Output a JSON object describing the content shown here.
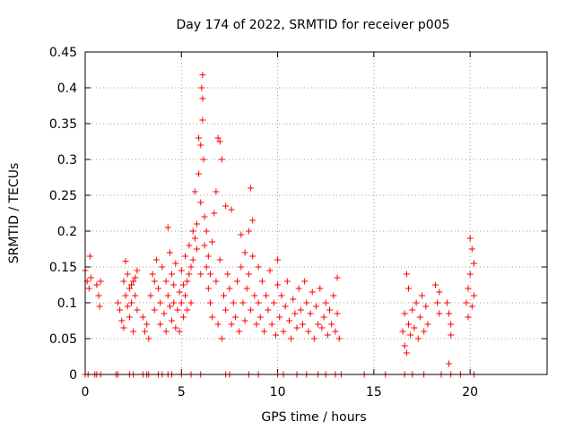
{
  "chart_data": {
    "type": "scatter",
    "title": "Day 174 of 2022, SRMTID for receiver p005",
    "xlabel": "GPS time / hours",
    "ylabel": "SRMTID / TECUs",
    "xlim": [
      0,
      24
    ],
    "ylim": [
      0,
      0.45
    ],
    "x_ticks": [
      0,
      5,
      10,
      15,
      20
    ],
    "y_ticks": [
      0,
      0.05,
      0.1,
      0.15,
      0.2,
      0.25,
      0.3,
      0.35,
      0.4,
      0.45
    ],
    "x_tick_labels": [
      "0",
      "5",
      "10",
      "15",
      "20"
    ],
    "y_tick_labels": [
      "0",
      "0.05",
      "0.1",
      "0.15",
      "0.2",
      "0.25",
      "0.3",
      "0.35",
      "0.4",
      "0.45"
    ],
    "grid": true,
    "marker": "plus",
    "color": "#ff0000",
    "series": [
      {
        "name": "SRMTID",
        "points": [
          [
            0.0,
            0.145
          ],
          [
            0.1,
            0.13
          ],
          [
            0.2,
            0.12
          ],
          [
            0.25,
            0.165
          ],
          [
            0.3,
            0.135
          ],
          [
            0.6,
            0.125
          ],
          [
            0.7,
            0.11
          ],
          [
            0.75,
            0.095
          ],
          [
            0.8,
            0.13
          ],
          [
            1.7,
            0.1
          ],
          [
            1.8,
            0.09
          ],
          [
            1.9,
            0.075
          ],
          [
            2.0,
            0.13
          ],
          [
            2.0,
            0.065
          ],
          [
            2.1,
            0.11
          ],
          [
            2.1,
            0.158
          ],
          [
            2.2,
            0.14
          ],
          [
            2.2,
            0.095
          ],
          [
            2.3,
            0.12
          ],
          [
            2.3,
            0.08
          ],
          [
            2.4,
            0.125
          ],
          [
            2.4,
            0.1
          ],
          [
            2.5,
            0.13
          ],
          [
            2.5,
            0.06
          ],
          [
            2.6,
            0.135
          ],
          [
            2.6,
            0.11
          ],
          [
            2.7,
            0.145
          ],
          [
            2.7,
            0.09
          ],
          [
            3.0,
            0.08
          ],
          [
            3.1,
            0.06
          ],
          [
            3.2,
            0.07
          ],
          [
            3.3,
            0.05
          ],
          [
            3.4,
            0.11
          ],
          [
            3.5,
            0.14
          ],
          [
            3.6,
            0.13
          ],
          [
            3.6,
            0.09
          ],
          [
            3.7,
            0.16
          ],
          [
            3.8,
            0.12
          ],
          [
            3.9,
            0.1
          ],
          [
            3.9,
            0.07
          ],
          [
            4.0,
            0.15
          ],
          [
            4.1,
            0.085
          ],
          [
            4.2,
            0.13
          ],
          [
            4.2,
            0.06
          ],
          [
            4.3,
            0.11
          ],
          [
            4.3,
            0.205
          ],
          [
            4.4,
            0.17
          ],
          [
            4.4,
            0.095
          ],
          [
            4.5,
            0.14
          ],
          [
            4.5,
            0.075
          ],
          [
            4.6,
            0.1
          ],
          [
            4.6,
            0.125
          ],
          [
            4.7,
            0.155
          ],
          [
            4.7,
            0.065
          ],
          [
            4.8,
            0.09
          ],
          [
            4.9,
            0.115
          ],
          [
            4.9,
            0.06
          ],
          [
            5.0,
            0.1
          ],
          [
            5.0,
            0.145
          ],
          [
            5.1,
            0.08
          ],
          [
            5.1,
            0.125
          ],
          [
            5.2,
            0.11
          ],
          [
            5.2,
            0.165
          ],
          [
            5.3,
            0.09
          ],
          [
            5.3,
            0.13
          ],
          [
            5.4,
            0.14
          ],
          [
            5.4,
            0.18
          ],
          [
            5.5,
            0.15
          ],
          [
            5.5,
            0.1
          ],
          [
            5.6,
            0.2
          ],
          [
            5.6,
            0.16
          ],
          [
            5.7,
            0.19
          ],
          [
            5.7,
            0.255
          ],
          [
            5.8,
            0.21
          ],
          [
            5.8,
            0.175
          ],
          [
            5.9,
            0.28
          ],
          [
            5.9,
            0.33
          ],
          [
            6.0,
            0.32
          ],
          [
            6.0,
            0.24
          ],
          [
            6.0,
            0.14
          ],
          [
            6.05,
            0.4
          ],
          [
            6.1,
            0.418
          ],
          [
            6.1,
            0.385
          ],
          [
            6.1,
            0.355
          ],
          [
            6.15,
            0.3
          ],
          [
            6.2,
            0.22
          ],
          [
            6.2,
            0.18
          ],
          [
            6.3,
            0.15
          ],
          [
            6.3,
            0.2
          ],
          [
            6.4,
            0.12
          ],
          [
            6.4,
            0.165
          ],
          [
            6.5,
            0.1
          ],
          [
            6.5,
            0.14
          ],
          [
            6.6,
            0.185
          ],
          [
            6.6,
            0.08
          ],
          [
            6.7,
            0.225
          ],
          [
            6.8,
            0.13
          ],
          [
            6.8,
            0.255
          ],
          [
            6.9,
            0.33
          ],
          [
            6.9,
            0.07
          ],
          [
            7.0,
            0.325
          ],
          [
            7.0,
            0.16
          ],
          [
            7.1,
            0.3
          ],
          [
            7.1,
            0.05
          ],
          [
            7.2,
            0.11
          ],
          [
            7.3,
            0.09
          ],
          [
            7.3,
            0.235
          ],
          [
            7.4,
            0.14
          ],
          [
            7.5,
            0.12
          ],
          [
            7.6,
            0.07
          ],
          [
            7.6,
            0.23
          ],
          [
            7.7,
            0.1
          ],
          [
            7.8,
            0.08
          ],
          [
            7.9,
            0.13
          ],
          [
            8.0,
            0.06
          ],
          [
            8.1,
            0.15
          ],
          [
            8.1,
            0.195
          ],
          [
            8.2,
            0.1
          ],
          [
            8.3,
            0.17
          ],
          [
            8.3,
            0.075
          ],
          [
            8.4,
            0.12
          ],
          [
            8.5,
            0.14
          ],
          [
            8.5,
            0.2
          ],
          [
            8.6,
            0.09
          ],
          [
            8.6,
            0.26
          ],
          [
            8.7,
            0.165
          ],
          [
            8.7,
            0.215
          ],
          [
            8.8,
            0.11
          ],
          [
            8.9,
            0.07
          ],
          [
            9.0,
            0.15
          ],
          [
            9.0,
            0.1
          ],
          [
            9.1,
            0.08
          ],
          [
            9.2,
            0.13
          ],
          [
            9.3,
            0.06
          ],
          [
            9.4,
            0.11
          ],
          [
            9.5,
            0.09
          ],
          [
            9.6,
            0.145
          ],
          [
            9.7,
            0.07
          ],
          [
            9.8,
            0.1
          ],
          [
            9.9,
            0.055
          ],
          [
            10.0,
            0.125
          ],
          [
            10.0,
            0.16
          ],
          [
            10.1,
            0.08
          ],
          [
            10.2,
            0.11
          ],
          [
            10.3,
            0.06
          ],
          [
            10.4,
            0.095
          ],
          [
            10.5,
            0.13
          ],
          [
            10.6,
            0.075
          ],
          [
            10.7,
            0.05
          ],
          [
            10.8,
            0.105
          ],
          [
            10.9,
            0.085
          ],
          [
            11.0,
            0.065
          ],
          [
            11.1,
            0.12
          ],
          [
            11.2,
            0.09
          ],
          [
            11.3,
            0.07
          ],
          [
            11.4,
            0.13
          ],
          [
            11.5,
            0.1
          ],
          [
            11.6,
            0.06
          ],
          [
            11.7,
            0.085
          ],
          [
            11.8,
            0.115
          ],
          [
            11.9,
            0.05
          ],
          [
            12.0,
            0.095
          ],
          [
            12.1,
            0.07
          ],
          [
            12.2,
            0.12
          ],
          [
            12.3,
            0.065
          ],
          [
            12.4,
            0.08
          ],
          [
            12.5,
            0.1
          ],
          [
            12.6,
            0.055
          ],
          [
            12.7,
            0.09
          ],
          [
            12.8,
            0.07
          ],
          [
            12.9,
            0.11
          ],
          [
            13.0,
            0.06
          ],
          [
            13.1,
            0.085
          ],
          [
            13.1,
            0.135
          ],
          [
            13.2,
            0.05
          ],
          [
            16.5,
            0.06
          ],
          [
            16.6,
            0.04
          ],
          [
            16.6,
            0.085
          ],
          [
            16.7,
            0.14
          ],
          [
            16.7,
            0.03
          ],
          [
            16.8,
            0.07
          ],
          [
            16.8,
            0.12
          ],
          [
            16.9,
            0.055
          ],
          [
            17.0,
            0.09
          ],
          [
            17.1,
            0.065
          ],
          [
            17.2,
            0.1
          ],
          [
            17.3,
            0.05
          ],
          [
            17.4,
            0.08
          ],
          [
            17.5,
            0.11
          ],
          [
            17.6,
            0.06
          ],
          [
            17.7,
            0.095
          ],
          [
            17.8,
            0.07
          ],
          [
            18.2,
            0.125
          ],
          [
            18.3,
            0.1
          ],
          [
            18.4,
            0.085
          ],
          [
            18.4,
            0.115
          ],
          [
            18.8,
            0.1
          ],
          [
            18.9,
            0.085
          ],
          [
            18.9,
            0.015
          ],
          [
            19.0,
            0.07
          ],
          [
            19.0,
            0.055
          ],
          [
            19.8,
            0.1
          ],
          [
            19.9,
            0.12
          ],
          [
            19.9,
            0.08
          ],
          [
            20.0,
            0.14
          ],
          [
            20.0,
            0.19
          ],
          [
            20.1,
            0.175
          ],
          [
            20.1,
            0.095
          ],
          [
            20.2,
            0.11
          ],
          [
            20.2,
            0.155
          ]
        ]
      }
    ],
    "zero_points_x": [
      0.0,
      0.15,
      0.5,
      0.6,
      0.8,
      1.6,
      1.7,
      2.3,
      2.5,
      3.0,
      3.2,
      3.3,
      3.8,
      4.0,
      4.3,
      4.5,
      5.0,
      5.5,
      6.0,
      7.3,
      7.5,
      8.5,
      9.0,
      10.0,
      10.3,
      11.0,
      11.5,
      12.1,
      12.5,
      13.0,
      13.3,
      14.5,
      15.6,
      16.6,
      17.0,
      17.6,
      18.5,
      19.0,
      19.5,
      20.2
    ]
  }
}
